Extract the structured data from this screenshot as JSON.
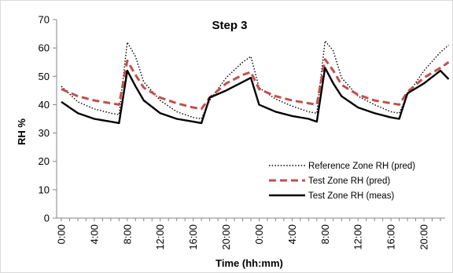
{
  "chart_data": {
    "type": "line",
    "title": "Step 3",
    "xlabel": "Time (hh:mm)",
    "ylabel": "RH %",
    "ylim": [
      0,
      70
    ],
    "yticks": [
      0,
      10,
      20,
      30,
      40,
      50,
      60,
      70
    ],
    "xticks": [
      "0:00",
      "4:00",
      "8:00",
      "12:00",
      "16:00",
      "20:00",
      "0:00",
      "4:00",
      "8:00",
      "12:00",
      "16:00",
      "20:00"
    ],
    "x": [
      "0:00",
      "2:00",
      "4:00",
      "6:00",
      "7:00",
      "8:00",
      "9:00",
      "10:00",
      "12:00",
      "14:00",
      "16:00",
      "17:00",
      "18:00",
      "20:00",
      "22:00",
      "23:00",
      "0:00",
      "2:00",
      "4:00",
      "6:00",
      "7:00",
      "8:00",
      "9:00",
      "10:00",
      "12:00",
      "14:00",
      "16:00",
      "17:00",
      "18:00",
      "20:00",
      "22:00",
      "23:00"
    ],
    "grid": false,
    "legend_position": "bottom-right",
    "series": [
      {
        "name": "Reference Zone RH (pred)",
        "style": "dotted",
        "color": "#000000",
        "values": [
          46.5,
          41.0,
          38.5,
          37.0,
          36.5,
          62.0,
          57.0,
          48.0,
          41.5,
          37.5,
          35.5,
          35.0,
          41.5,
          49.5,
          55.0,
          57.0,
          46.0,
          42.0,
          39.5,
          37.5,
          37.0,
          62.5,
          59.0,
          49.5,
          43.0,
          40.0,
          37.5,
          37.0,
          43.5,
          52.0,
          58.5,
          61.0
        ]
      },
      {
        "name": "Test Zone RH (pred)",
        "style": "dashed",
        "color": "#c0504d",
        "values": [
          45.5,
          43.0,
          41.5,
          40.5,
          40.0,
          55.5,
          50.5,
          46.0,
          42.5,
          40.5,
          39.0,
          38.5,
          42.5,
          47.5,
          50.5,
          51.5,
          45.5,
          43.0,
          41.5,
          40.5,
          40.0,
          56.0,
          52.0,
          47.0,
          43.5,
          41.5,
          40.5,
          40.0,
          44.5,
          49.5,
          53.0,
          55.0
        ]
      },
      {
        "name": "Test Zone RH (meas)",
        "style": "solid",
        "color": "#000000",
        "values": [
          41.0,
          37.0,
          35.0,
          34.0,
          33.5,
          52.0,
          46.5,
          41.5,
          37.0,
          35.0,
          34.0,
          33.5,
          42.5,
          45.0,
          48.0,
          49.5,
          40.0,
          37.5,
          36.0,
          35.0,
          34.0,
          53.0,
          47.5,
          43.0,
          39.0,
          37.0,
          35.5,
          35.0,
          44.0,
          47.5,
          52.0,
          49.0
        ]
      }
    ]
  }
}
